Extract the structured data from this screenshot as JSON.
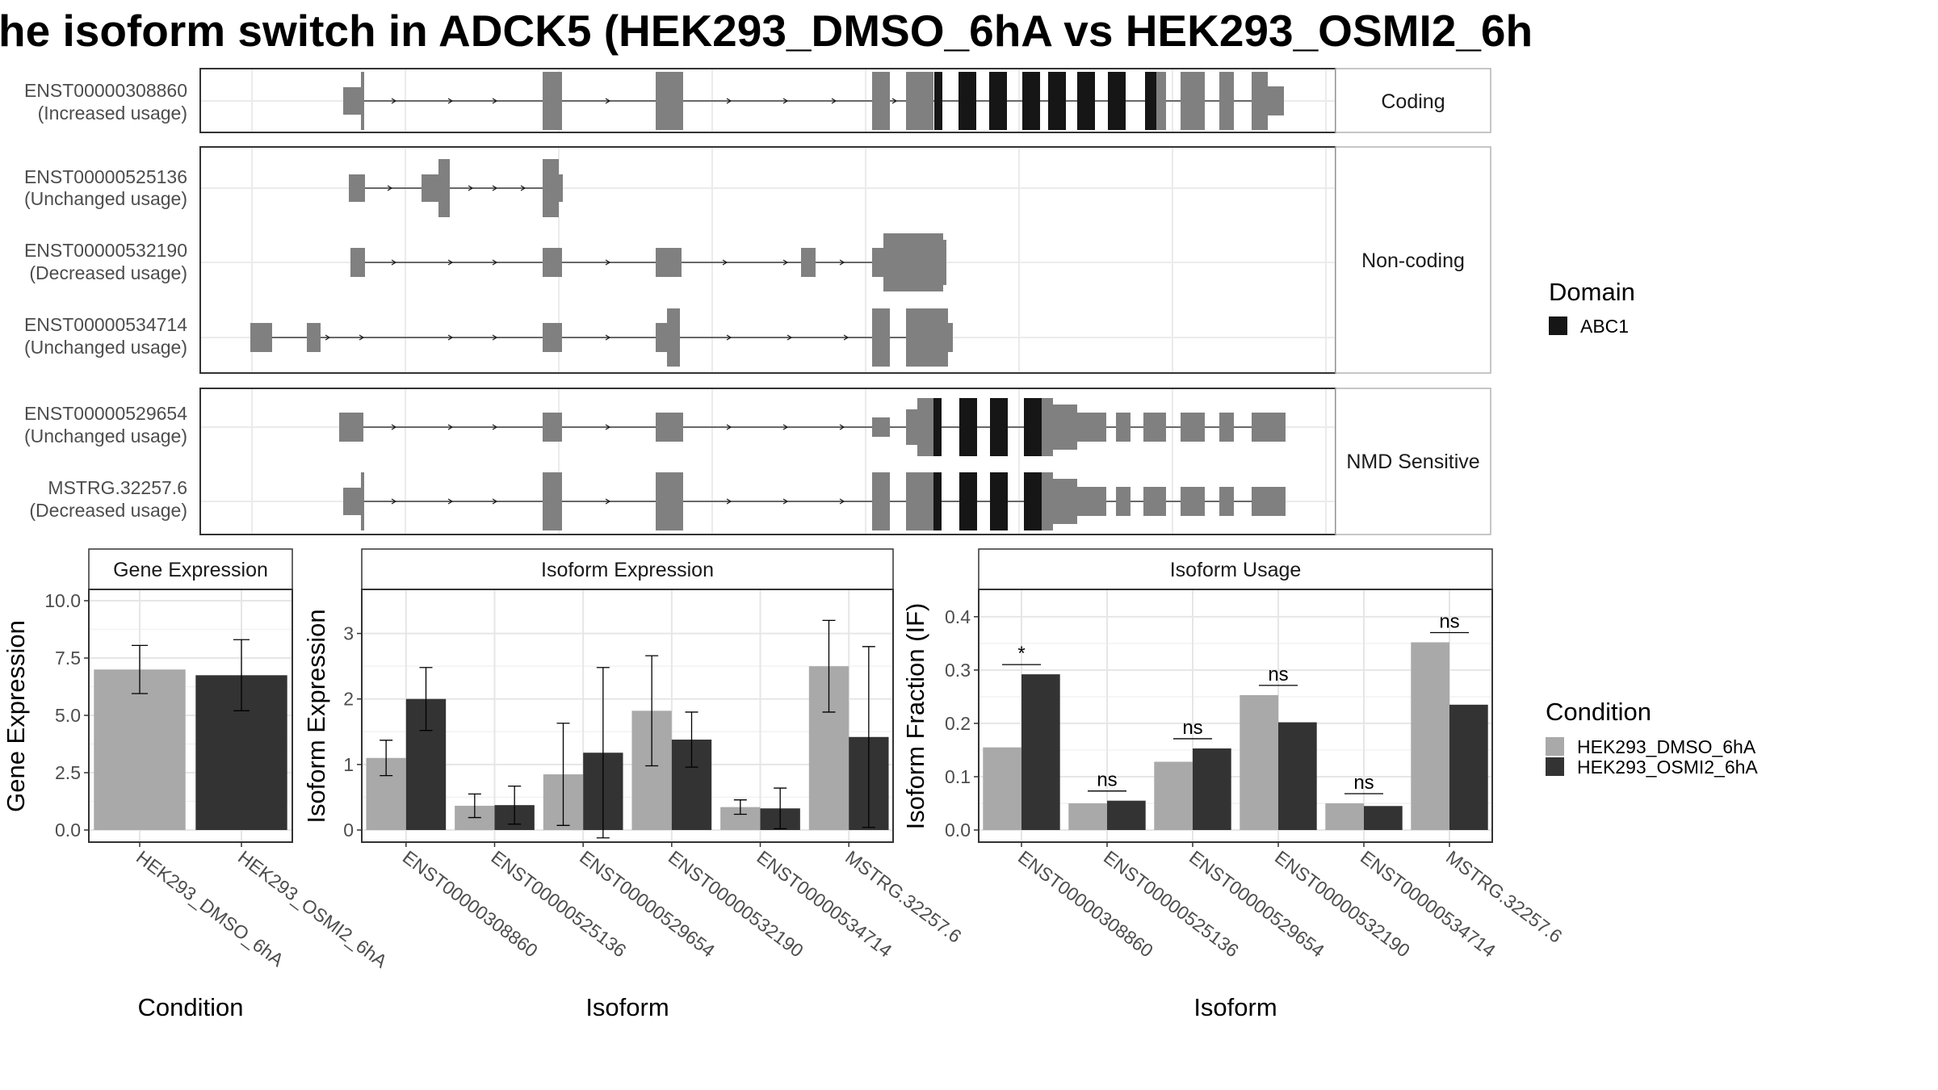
{
  "title": "he isoform switch in ADCK5 (HEK293_DMSO_6hA vs HEK293_OSMI2_6h",
  "colors": {
    "dmso": "#a9a9a9",
    "osmi": "#333333",
    "exon": "#808080",
    "domain": "#161616"
  },
  "transcript_panels": [
    {
      "label": "Coding",
      "transcripts": [
        {
          "id": "ENST00000308860",
          "usage": "(Increased usage)"
        }
      ]
    },
    {
      "label": "Non-coding",
      "transcripts": [
        {
          "id": "ENST00000525136",
          "usage": "(Unchanged usage)"
        },
        {
          "id": "ENST00000532190",
          "usage": "(Decreased usage)"
        },
        {
          "id": "ENST00000534714",
          "usage": "(Unchanged usage)"
        }
      ]
    },
    {
      "label": "NMD Sensitive",
      "transcripts": [
        {
          "id": "ENST00000529654",
          "usage": "(Unchanged usage)"
        },
        {
          "id": "MSTRG.32257.6",
          "usage": "(Decreased usage)"
        }
      ]
    }
  ],
  "legend": {
    "domain_title": "Domain",
    "domain_items": [
      {
        "name": "ABC1",
        "color": "#161616"
      }
    ],
    "condition_title": "Condition",
    "condition_items": [
      {
        "name": "HEK293_DMSO_6hA",
        "color": "#a9a9a9"
      },
      {
        "name": "HEK293_OSMI2_6hA",
        "color": "#333333"
      }
    ]
  },
  "chart_data": [
    {
      "type": "bar",
      "title": "Gene Expression",
      "xlabel": "Condition",
      "ylabel": "Gene Expression",
      "ylim": [
        0,
        10
      ],
      "yticks": [
        "0.0",
        "2.5",
        "5.0",
        "7.5",
        "10.0"
      ],
      "categories": [
        "HEK293_DMSO_6hA",
        "HEK293_OSMI2_6hA"
      ],
      "values": [
        7.0,
        6.75
      ],
      "errors": [
        [
          5.95,
          8.05
        ],
        [
          5.2,
          8.3
        ]
      ]
    },
    {
      "type": "bar",
      "title": "Isoform Expression",
      "xlabel": "Isoform",
      "ylabel": "Isoform Expression",
      "ylim": [
        0,
        3.5
      ],
      "yticks": [
        "0",
        "1",
        "2",
        "3"
      ],
      "categories": [
        "ENST00000308860",
        "ENST00000525136",
        "ENST00000529654",
        "ENST00000532190",
        "ENST00000534714",
        "MSTRG.32257.6"
      ],
      "series": [
        {
          "name": "HEK293_DMSO_6hA",
          "values": [
            1.1,
            0.37,
            0.85,
            1.82,
            0.35,
            2.5
          ],
          "errors": [
            [
              0.83,
              1.37
            ],
            [
              0.19,
              0.55
            ],
            [
              0.07,
              1.63
            ],
            [
              0.98,
              2.66
            ],
            [
              0.24,
              0.46
            ],
            [
              1.8,
              3.2
            ]
          ]
        },
        {
          "name": "HEK293_OSMI2_6hA",
          "values": [
            2.0,
            0.38,
            1.18,
            1.38,
            0.33,
            1.42
          ],
          "errors": [
            [
              1.52,
              2.48
            ],
            [
              0.09,
              0.67
            ],
            [
              -0.12,
              2.48
            ],
            [
              0.96,
              1.8
            ],
            [
              0.02,
              0.64
            ],
            [
              0.04,
              2.8
            ]
          ]
        }
      ]
    },
    {
      "type": "bar",
      "title": "Isoform Usage",
      "xlabel": "Isoform",
      "ylabel": "Isoform Fraction (IF)",
      "ylim": [
        0,
        0.43
      ],
      "yticks": [
        "0.0",
        "0.1",
        "0.2",
        "0.3",
        "0.4"
      ],
      "categories": [
        "ENST00000308860",
        "ENST00000525136",
        "ENST00000529654",
        "ENST00000532190",
        "ENST00000534714",
        "MSTRG.32257.6"
      ],
      "series": [
        {
          "name": "HEK293_DMSO_6hA",
          "values": [
            0.155,
            0.05,
            0.128,
            0.253,
            0.05,
            0.352
          ]
        },
        {
          "name": "HEK293_OSMI2_6hA",
          "values": [
            0.292,
            0.055,
            0.153,
            0.202,
            0.045,
            0.235
          ]
        }
      ],
      "significance": [
        "*",
        "ns",
        "ns",
        "ns",
        "ns",
        "ns"
      ]
    }
  ]
}
